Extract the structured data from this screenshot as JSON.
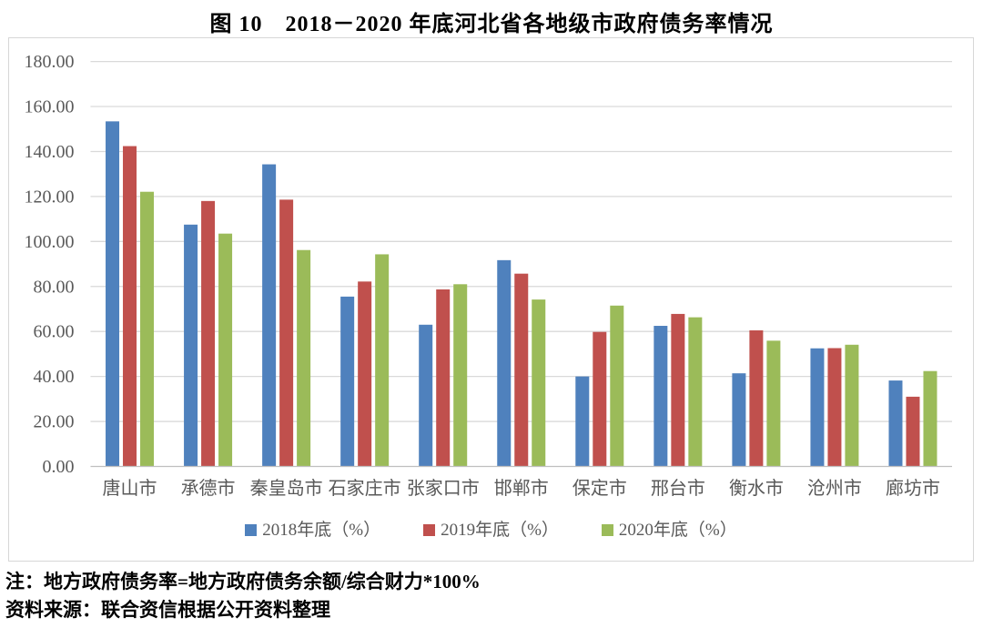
{
  "title": "图 10　2018－2020 年底河北省各地级市政府债务率情况",
  "notes": {
    "note": "注：地方政府债务率=地方政府债务余额/综合财力*100%",
    "source": "资料来源：联合资信根据公开资料整理"
  },
  "colors": {
    "series_2018": "#4F81BD",
    "series_2019": "#C0504D",
    "series_2020": "#9BBB59",
    "gridline": "#d9d9d9",
    "axis_line": "#bfbfbf",
    "chart_border": "#d7d7d7",
    "axis_text": "#595959",
    "title_text": "#000000"
  },
  "chart_data": {
    "type": "bar",
    "title": "图 10　2018－2020 年底河北省各地级市政府债务率情况",
    "categories": [
      "唐山市",
      "承德市",
      "秦皇岛市",
      "石家庄市",
      "张家口市",
      "邯郸市",
      "保定市",
      "邢台市",
      "衡水市",
      "沧州市",
      "廊坊市"
    ],
    "series": [
      {
        "name": "2018年底（%）",
        "color": "#4F81BD",
        "values": [
          153.4,
          107.5,
          134.3,
          75.5,
          63.0,
          91.7,
          40.0,
          62.5,
          41.4,
          52.5,
          38.2
        ]
      },
      {
        "name": "2019年底（%）",
        "color": "#C0504D",
        "values": [
          142.4,
          118.0,
          118.6,
          82.2,
          78.7,
          85.7,
          59.8,
          67.8,
          60.5,
          52.6,
          31.0
        ]
      },
      {
        "name": "2020年底（%）",
        "color": "#9BBB59",
        "values": [
          122.1,
          103.5,
          96.2,
          94.3,
          81.0,
          74.2,
          71.5,
          66.3,
          55.9,
          54.1,
          42.4
        ]
      }
    ],
    "xlabel": "",
    "ylabel": "",
    "ylim": [
      0,
      180
    ],
    "ytick_step": 20,
    "ytick_labels": [
      "0.00",
      "20.00",
      "40.00",
      "60.00",
      "80.00",
      "100.00",
      "120.00",
      "140.00",
      "160.00",
      "180.00"
    ],
    "grid": "horizontal",
    "legend_position": "bottom"
  }
}
